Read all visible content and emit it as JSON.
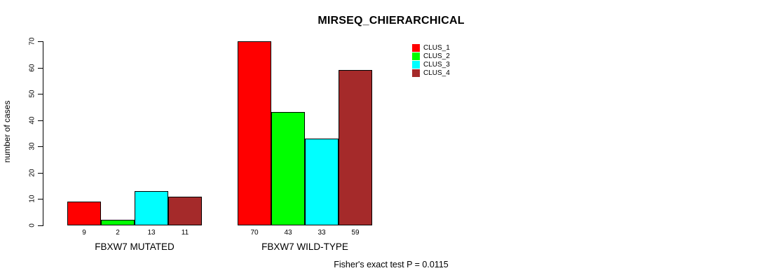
{
  "title": "MIRSEQ_CHIERARCHICAL",
  "chart_data": {
    "type": "bar",
    "title": "MIRSEQ_CHIERARCHICAL",
    "xlabel": "",
    "ylabel": "number of cases",
    "categories": [
      "FBXW7 MUTATED",
      "FBXW7 WILD-TYPE"
    ],
    "series": [
      {
        "name": "CLUS_1",
        "color": "#FF0000",
        "values": [
          9,
          70
        ]
      },
      {
        "name": "CLUS_2",
        "color": "#00FF00",
        "values": [
          2,
          43
        ]
      },
      {
        "name": "CLUS_3",
        "color": "#00FFFF",
        "values": [
          13,
          33
        ]
      },
      {
        "name": "CLUS_4",
        "color": "#A52A2A",
        "values": [
          11,
          59
        ]
      }
    ],
    "bar_value_labels": [
      [
        "9",
        "2",
        "13",
        "11"
      ],
      [
        "70",
        "43",
        "33",
        "59"
      ]
    ],
    "ylim": [
      0,
      70
    ],
    "yticks": [
      0,
      10,
      20,
      30,
      40,
      50,
      60,
      70
    ],
    "grid": false,
    "legend_position": "top-right",
    "bar_border_color": "#000000",
    "annotation": "Fisher's exact test P = 0.0115"
  }
}
